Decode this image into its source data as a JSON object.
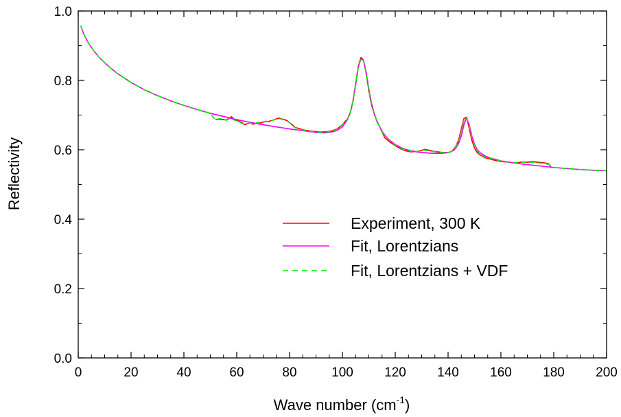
{
  "chart_data": {
    "type": "line",
    "xlabel": "Wave number (cm",
    "xlabel_sup": "-1",
    "xlabel_end": ")",
    "ylabel": "Reflectivity",
    "xlim": [
      0,
      200
    ],
    "ylim": [
      0.0,
      1.0
    ],
    "x_ticks": [
      0,
      20,
      40,
      60,
      80,
      100,
      120,
      140,
      160,
      180,
      200
    ],
    "x_tick_labels": [
      "0",
      "20",
      "40",
      "60",
      "80",
      "100",
      "120",
      "140",
      "160",
      "180",
      "200"
    ],
    "y_ticks": [
      0.0,
      0.2,
      0.4,
      0.6,
      0.8,
      1.0
    ],
    "y_tick_labels": [
      "0.0",
      "0.2",
      "0.4",
      "0.6",
      "0.8",
      "1.0"
    ],
    "grid": false,
    "legend_position": "center-right",
    "series": [
      {
        "name": "Experiment, 300 K",
        "color": "#ff0000",
        "style": "solid",
        "x": [
          52,
          54,
          56,
          57,
          58,
          59,
          60,
          61,
          62,
          63,
          64,
          65,
          66,
          67,
          68,
          69,
          70,
          71,
          72,
          73,
          74,
          75,
          76,
          77,
          78,
          79,
          80,
          81,
          82,
          84,
          86,
          88,
          90,
          92,
          94,
          96,
          98,
          100,
          102,
          103,
          104,
          105,
          106,
          107,
          108,
          109,
          110,
          111,
          112,
          113,
          114,
          115,
          116,
          118,
          120,
          122,
          124,
          126,
          128,
          130,
          131,
          132,
          133,
          134,
          136,
          138,
          140,
          141,
          142,
          143,
          144,
          145,
          146,
          147,
          148,
          149,
          150,
          151,
          152,
          154,
          156,
          158,
          160,
          162,
          164,
          166,
          168,
          170,
          172,
          174,
          176,
          178,
          179
        ],
        "y": [
          0.687,
          0.688,
          0.686,
          0.69,
          0.695,
          0.688,
          0.685,
          0.682,
          0.678,
          0.672,
          0.675,
          0.677,
          0.674,
          0.675,
          0.679,
          0.677,
          0.68,
          0.682,
          0.681,
          0.684,
          0.686,
          0.689,
          0.691,
          0.689,
          0.687,
          0.684,
          0.678,
          0.672,
          0.665,
          0.66,
          0.656,
          0.654,
          0.652,
          0.651,
          0.652,
          0.654,
          0.66,
          0.672,
          0.69,
          0.708,
          0.74,
          0.79,
          0.84,
          0.866,
          0.858,
          0.82,
          0.77,
          0.73,
          0.705,
          0.684,
          0.668,
          0.652,
          0.635,
          0.622,
          0.612,
          0.603,
          0.597,
          0.594,
          0.595,
          0.598,
          0.601,
          0.6,
          0.598,
          0.596,
          0.594,
          0.592,
          0.592,
          0.594,
          0.6,
          0.61,
          0.628,
          0.66,
          0.69,
          0.694,
          0.662,
          0.628,
          0.605,
          0.592,
          0.586,
          0.577,
          0.573,
          0.569,
          0.566,
          0.565,
          0.563,
          0.562,
          0.565,
          0.564,
          0.566,
          0.564,
          0.563,
          0.56,
          0.55
        ]
      },
      {
        "name": "Fit, Lorentzians",
        "color": "#ff00ff",
        "style": "solid",
        "x": [
          1,
          2,
          3,
          4,
          6,
          8,
          10,
          12,
          15,
          20,
          25,
          30,
          35,
          40,
          45,
          50,
          55,
          60,
          65,
          70,
          75,
          80,
          85,
          88,
          90,
          92,
          94,
          96,
          98,
          100,
          102,
          103,
          104,
          105,
          106,
          107,
          108,
          109,
          110,
          111,
          112,
          113,
          114,
          115,
          116,
          118,
          120,
          122,
          124,
          126,
          128,
          130,
          132,
          134,
          136,
          138,
          140,
          141,
          142,
          143,
          144,
          145,
          146,
          147,
          148,
          149,
          150,
          151,
          152,
          154,
          156,
          158,
          160,
          165,
          170,
          175,
          180,
          185,
          190,
          195,
          200
        ],
        "y": [
          0.957,
          0.935,
          0.92,
          0.906,
          0.884,
          0.866,
          0.851,
          0.837,
          0.819,
          0.794,
          0.773,
          0.756,
          0.741,
          0.728,
          0.716,
          0.705,
          0.696,
          0.687,
          0.679,
          0.672,
          0.666,
          0.66,
          0.655,
          0.652,
          0.65,
          0.649,
          0.649,
          0.651,
          0.656,
          0.666,
          0.688,
          0.708,
          0.74,
          0.788,
          0.838,
          0.862,
          0.858,
          0.823,
          0.775,
          0.735,
          0.706,
          0.684,
          0.667,
          0.654,
          0.643,
          0.627,
          0.615,
          0.607,
          0.601,
          0.597,
          0.594,
          0.592,
          0.591,
          0.59,
          0.59,
          0.59,
          0.592,
          0.594,
          0.598,
          0.605,
          0.618,
          0.64,
          0.672,
          0.692,
          0.672,
          0.64,
          0.616,
          0.601,
          0.592,
          0.582,
          0.576,
          0.572,
          0.568,
          0.562,
          0.557,
          0.553,
          0.549,
          0.546,
          0.543,
          0.541,
          0.54
        ]
      },
      {
        "name": "Fit, Lorentzians + VDF",
        "color": "#00ee00",
        "style": "dashed",
        "x": [
          1,
          2,
          3,
          4,
          6,
          8,
          10,
          12,
          15,
          20,
          25,
          30,
          35,
          40,
          45,
          50,
          52,
          53,
          54,
          55,
          56,
          57,
          58,
          59,
          60,
          61,
          62,
          63,
          64,
          65,
          66,
          67,
          68,
          69,
          70,
          71,
          72,
          73,
          74,
          75,
          76,
          77,
          78,
          79,
          80,
          81,
          82,
          84,
          86,
          88,
          90,
          92,
          94,
          96,
          98,
          100,
          102,
          103,
          104,
          105,
          106,
          107,
          108,
          109,
          110,
          111,
          112,
          113,
          114,
          115,
          116,
          118,
          120,
          122,
          124,
          126,
          128,
          130,
          131,
          132,
          133,
          134,
          136,
          138,
          140,
          141,
          142,
          143,
          144,
          145,
          146,
          147,
          148,
          149,
          150,
          151,
          152,
          154,
          156,
          158,
          160,
          162,
          164,
          166,
          168,
          170,
          172,
          174,
          176,
          178,
          180,
          185,
          190,
          195,
          200
        ],
        "y": [
          0.957,
          0.935,
          0.92,
          0.906,
          0.884,
          0.866,
          0.851,
          0.837,
          0.819,
          0.794,
          0.773,
          0.756,
          0.741,
          0.728,
          0.716,
          0.705,
          0.684,
          0.689,
          0.69,
          0.688,
          0.685,
          0.688,
          0.69,
          0.686,
          0.683,
          0.68,
          0.676,
          0.673,
          0.675,
          0.677,
          0.675,
          0.676,
          0.679,
          0.678,
          0.68,
          0.681,
          0.682,
          0.684,
          0.686,
          0.688,
          0.69,
          0.688,
          0.686,
          0.683,
          0.678,
          0.671,
          0.664,
          0.659,
          0.655,
          0.653,
          0.651,
          0.65,
          0.651,
          0.653,
          0.659,
          0.671,
          0.69,
          0.708,
          0.74,
          0.788,
          0.838,
          0.862,
          0.857,
          0.82,
          0.772,
          0.734,
          0.706,
          0.685,
          0.668,
          0.654,
          0.641,
          0.626,
          0.614,
          0.605,
          0.599,
          0.596,
          0.595,
          0.597,
          0.599,
          0.598,
          0.597,
          0.596,
          0.593,
          0.591,
          0.592,
          0.594,
          0.599,
          0.608,
          0.624,
          0.652,
          0.685,
          0.692,
          0.668,
          0.636,
          0.612,
          0.598,
          0.588,
          0.579,
          0.575,
          0.571,
          0.567,
          0.566,
          0.564,
          0.563,
          0.565,
          0.563,
          0.564,
          0.562,
          0.561,
          0.558,
          0.549,
          0.546,
          0.543,
          0.541,
          0.54
        ]
      }
    ]
  }
}
